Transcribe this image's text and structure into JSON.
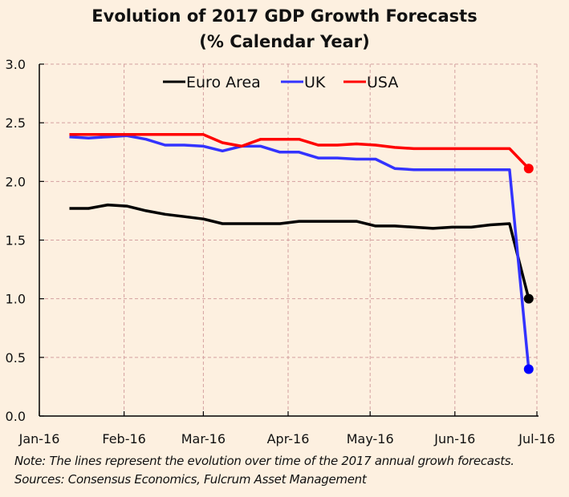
{
  "chart_data": {
    "type": "line",
    "title": "Evolution of 2017 GDP Growth Forecasts",
    "subtitle": "(% Calendar Year)",
    "xlabel": "",
    "ylabel": "",
    "ylim": [
      0,
      3.0
    ],
    "yticks": [
      "0.0",
      "0.5",
      "1.0",
      "1.5",
      "2.0",
      "2.5",
      "3.0"
    ],
    "ytick_values": [
      0,
      0.5,
      1.0,
      1.5,
      2.0,
      2.5,
      3.0
    ],
    "xticks": [
      "Jan-16",
      "Feb-16",
      "Mar-16",
      "Apr-16",
      "May-16",
      "Jun-16",
      "Jul-16"
    ],
    "xtick_days": [
      0,
      31,
      60,
      91,
      121,
      152,
      182
    ],
    "grid": true,
    "legend_position": "top-center",
    "x_days": [
      11,
      18,
      25,
      32,
      39,
      46,
      53,
      60,
      67,
      74,
      81,
      88,
      95,
      102,
      109,
      116,
      123,
      130,
      137,
      144,
      151,
      158,
      165,
      172,
      179
    ],
    "series": [
      {
        "name": "Euro Area",
        "color": "#000000",
        "values": [
          1.77,
          1.77,
          1.8,
          1.79,
          1.75,
          1.72,
          1.7,
          1.68,
          1.64,
          1.64,
          1.64,
          1.64,
          1.66,
          1.66,
          1.66,
          1.66,
          1.62,
          1.62,
          1.61,
          1.6,
          1.61,
          1.61,
          1.63,
          1.64,
          1.0
        ],
        "final_marker": true
      },
      {
        "name": "UK",
        "color": "#3333ff",
        "marker_color": "#0000ff",
        "values": [
          2.38,
          2.37,
          2.38,
          2.39,
          2.36,
          2.31,
          2.31,
          2.3,
          2.26,
          2.3,
          2.3,
          2.25,
          2.25,
          2.2,
          2.2,
          2.19,
          2.19,
          2.11,
          2.1,
          2.1,
          2.1,
          2.1,
          2.1,
          2.1,
          0.4
        ],
        "final_marker": true
      },
      {
        "name": "USA",
        "color": "#ff0000",
        "values": [
          2.4,
          2.4,
          2.4,
          2.4,
          2.4,
          2.4,
          2.4,
          2.4,
          2.33,
          2.3,
          2.36,
          2.36,
          2.36,
          2.31,
          2.31,
          2.32,
          2.31,
          2.29,
          2.28,
          2.28,
          2.28,
          2.28,
          2.28,
          2.28,
          2.11
        ],
        "final_marker": true
      }
    ],
    "notes": [
      "Note: The lines represent the evolution over time of the 2017 annual growh forecasts.",
      "Sources: Consensus Economics, Fulcrum Asset Management"
    ]
  },
  "colors": {
    "background": "#fdf0e0",
    "grid": "#d4a0a0",
    "axis": "#000000"
  }
}
